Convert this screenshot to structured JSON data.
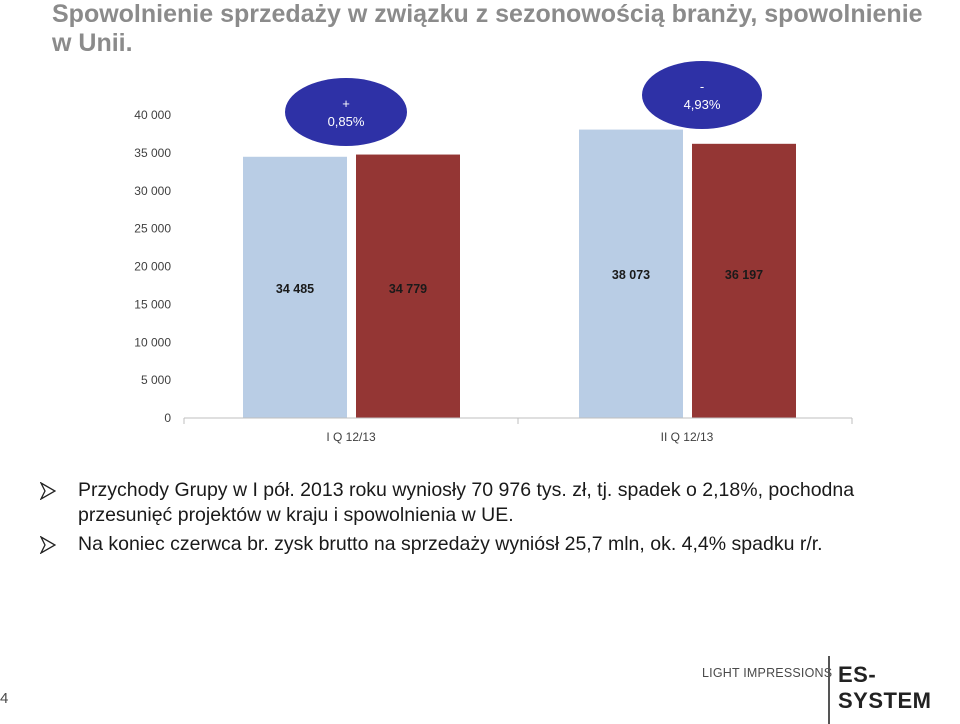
{
  "title": "Spowolnienie sprzedaży w związku z sezonowością branży, spowolnienie w Unii.",
  "colors": {
    "series1": "#B9CDE5",
    "series2": "#943634",
    "bubble": "#2E31A6",
    "axis": "#BFBFBF"
  },
  "chart_data": {
    "type": "bar",
    "categories": [
      "I Q 12/13",
      "II Q 12/13"
    ],
    "series": [
      {
        "values": [
          34485,
          38073
        ],
        "labels": [
          "34 485",
          "38 073"
        ]
      },
      {
        "values": [
          34779,
          36197
        ],
        "labels": [
          "34 779",
          "36 197"
        ]
      }
    ],
    "ylim": [
      0,
      40000
    ],
    "yticks": [
      0,
      5000,
      10000,
      15000,
      20000,
      25000,
      30000,
      35000,
      40000
    ],
    "ytick_labels": [
      "0",
      "5 000",
      "10 000",
      "15 000",
      "20 000",
      "25 000",
      "30 000",
      "35 000",
      "40 000"
    ],
    "annotations": [
      {
        "sign": "+",
        "text": "0,85%"
      },
      {
        "sign": "-",
        "text": "4,93%"
      }
    ],
    "grid": false,
    "legend": "none"
  },
  "bullets": [
    "Przychody Grupy w I pół. 2013 roku wyniosły 70 976 tys. zł, tj. spadek o 2,18%, pochodna przesunięć projektów w kraju i spowolnienia w UE.",
    "Na koniec czerwca br. zysk brutto na sprzedaży wyniósł 25,7 mln, ok. 4,4% spadku r/r."
  ],
  "footer": {
    "page_number": "4",
    "company": "LIGHT IMPRESSIONS",
    "logo": "ES-SYSTEM"
  }
}
